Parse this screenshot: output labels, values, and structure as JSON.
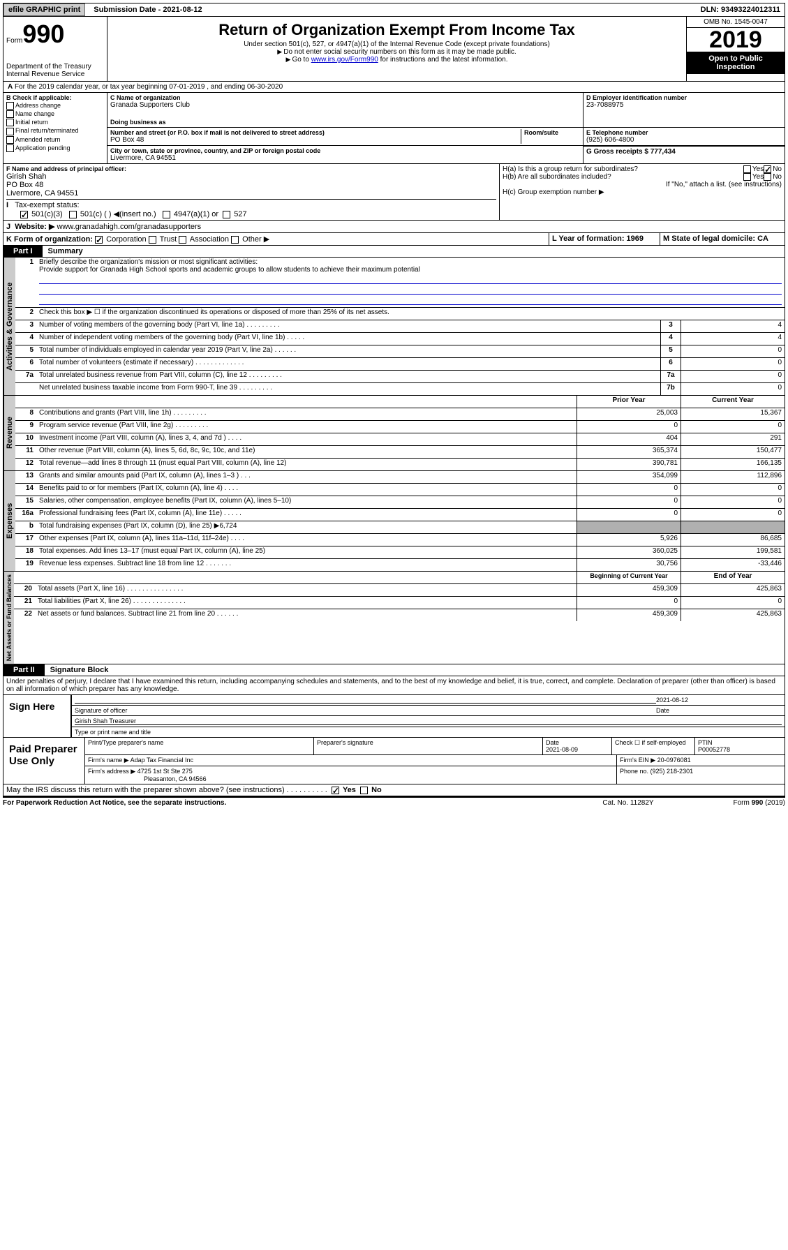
{
  "topbar": {
    "efile": "efile GRAPHIC print",
    "submission": "Submission Date - 2021-08-12",
    "dln": "DLN: 93493224012311"
  },
  "header": {
    "form_small": "Form",
    "form_big": "990",
    "dept": "Department of the Treasury\nInternal Revenue Service",
    "title": "Return of Organization Exempt From Income Tax",
    "sub1": "Under section 501(c), 527, or 4947(a)(1) of the Internal Revenue Code (except private foundations)",
    "sub2": "Do not enter social security numbers on this form as it may be made public.",
    "sub3_pre": "Go to ",
    "sub3_link": "www.irs.gov/Form990",
    "sub3_post": " for instructions and the latest information.",
    "omb": "OMB No. 1545-0047",
    "year": "2019",
    "public": "Open to Public Inspection"
  },
  "period": {
    "text": "For the 2019 calendar year, or tax year beginning 07-01-2019   , and ending 06-30-2020"
  },
  "sectB": {
    "hdr": "B Check if applicable:",
    "opts": [
      "Address change",
      "Name change",
      "Initial return",
      "Final return/terminated",
      "Amended return",
      "Application pending"
    ]
  },
  "sectC": {
    "name_lbl": "C Name of organization",
    "name": "Granada Supporters Club",
    "dba_lbl": "Doing business as",
    "dba": "",
    "addr_lbl": "Number and street (or P.O. box if mail is not delivered to street address)",
    "room_lbl": "Room/suite",
    "addr": "PO Box 48",
    "city_lbl": "City or town, state or province, country, and ZIP or foreign postal code",
    "city": "Livermore, CA  94551"
  },
  "sectD": {
    "lbl": "D Employer identification number",
    "val": "23-7088975"
  },
  "sectE": {
    "lbl": "E Telephone number",
    "val": "(925) 606-4800"
  },
  "sectG": {
    "lbl": "G Gross receipts $ 777,434"
  },
  "sectF": {
    "lbl": "F  Name and address of principal officer:",
    "name": "Girish Shah",
    "addr": "PO Box 48",
    "city": "Livermore, CA  94551"
  },
  "sectH": {
    "a": "H(a)  Is this a group return for subordinates?",
    "b": "H(b)  Are all subordinates included?",
    "bnote": "If \"No,\" attach a list. (see instructions)",
    "c": "H(c)  Group exemption number ▶"
  },
  "sectI": {
    "lbl": "Tax-exempt status:",
    "o1": "501(c)(3)",
    "o2": "501(c) (  ) ◀(insert no.)",
    "o3": "4947(a)(1) or",
    "o4": "527"
  },
  "sectJ": {
    "lbl": "Website: ▶",
    "val": "www.granadahigh.com/granadasupporters"
  },
  "sectK": {
    "lbl": "K Form of organization:",
    "o1": "Corporation",
    "o2": "Trust",
    "o3": "Association",
    "o4": "Other ▶"
  },
  "sectL": {
    "lbl": "L Year of formation: 1969"
  },
  "sectM": {
    "lbl": "M State of legal domicile: CA"
  },
  "part1": {
    "num": "Part I",
    "title": "Summary"
  },
  "summary": {
    "q1": "Briefly describe the organization's mission or most significant activities:",
    "mission": "Provide support for Granada High School sports and academic groups to allow students to achieve their maximum potential",
    "q2": "Check this box ▶ ☐  if the organization discontinued its operations or disposed of more than 25% of its net assets.",
    "rows_gov": [
      {
        "n": "3",
        "t": "Number of voting members of the governing body (Part VI, line 1a)  .   .   .   .   .   .   .   .   .",
        "c": "3",
        "v": "4"
      },
      {
        "n": "4",
        "t": "Number of independent voting members of the governing body (Part VI, line 1b)  .   .   .   .   .",
        "c": "4",
        "v": "4"
      },
      {
        "n": "5",
        "t": "Total number of individuals employed in calendar year 2019 (Part V, line 2a)  .   .   .   .   .   .",
        "c": "5",
        "v": "0"
      },
      {
        "n": "6",
        "t": "Total number of volunteers (estimate if necessary)  .   .   .   .   .   .   .   .   .   .   .   .   .",
        "c": "6",
        "v": "0"
      },
      {
        "n": "7a",
        "t": "Total unrelated business revenue from Part VIII, column (C), line 12  .   .   .   .   .   .   .   .   .",
        "c": "7a",
        "v": "0"
      },
      {
        "n": "",
        "t": "Net unrelated business taxable income from Form 990-T, line 39  .   .   .   .   .   .   .   .   .",
        "c": "7b",
        "v": "0"
      }
    ],
    "col_py": "Prior Year",
    "col_cy": "Current Year",
    "col_bcy": "Beginning of Current Year",
    "col_ey": "End of Year",
    "rows_rev": [
      {
        "n": "8",
        "t": "Contributions and grants (Part VIII, line 1h)  .   .   .   .   .   .   .   .   .",
        "py": "25,003",
        "cy": "15,367"
      },
      {
        "n": "9",
        "t": "Program service revenue (Part VIII, line 2g)  .   .   .   .   .   .   .   .   .",
        "py": "0",
        "cy": "0"
      },
      {
        "n": "10",
        "t": "Investment income (Part VIII, column (A), lines 3, 4, and 7d )  .   .   .   .",
        "py": "404",
        "cy": "291"
      },
      {
        "n": "11",
        "t": "Other revenue (Part VIII, column (A), lines 5, 6d, 8c, 9c, 10c, and 11e)",
        "py": "365,374",
        "cy": "150,477"
      },
      {
        "n": "12",
        "t": "Total revenue—add lines 8 through 11 (must equal Part VIII, column (A), line 12)",
        "py": "390,781",
        "cy": "166,135"
      }
    ],
    "rows_exp": [
      {
        "n": "13",
        "t": "Grants and similar amounts paid (Part IX, column (A), lines 1–3 )  .   .   .",
        "py": "354,099",
        "cy": "112,896"
      },
      {
        "n": "14",
        "t": "Benefits paid to or for members (Part IX, column (A), line 4)  .   .   .   .",
        "py": "0",
        "cy": "0"
      },
      {
        "n": "15",
        "t": "Salaries, other compensation, employee benefits (Part IX, column (A), lines 5–10)",
        "py": "0",
        "cy": "0"
      },
      {
        "n": "16a",
        "t": "Professional fundraising fees (Part IX, column (A), line 11e)  .   .   .   .   .",
        "py": "0",
        "cy": "0"
      },
      {
        "n": "b",
        "t": "Total fundraising expenses (Part IX, column (D), line 25) ▶6,724",
        "py": "",
        "cy": "",
        "gray": true
      },
      {
        "n": "17",
        "t": "Other expenses (Part IX, column (A), lines 11a–11d, 11f–24e)  .   .   .   .",
        "py": "5,926",
        "cy": "86,685"
      },
      {
        "n": "18",
        "t": "Total expenses. Add lines 13–17 (must equal Part IX, column (A), line 25)",
        "py": "360,025",
        "cy": "199,581"
      },
      {
        "n": "19",
        "t": "Revenue less expenses. Subtract line 18 from line 12  .   .   .   .   .   .   .",
        "py": "30,756",
        "cy": "-33,446"
      }
    ],
    "rows_na": [
      {
        "n": "20",
        "t": "Total assets (Part X, line 16)  .   .   .   .   .   .   .   .   .   .   .   .   .   .   .",
        "py": "459,309",
        "cy": "425,863"
      },
      {
        "n": "21",
        "t": "Total liabilities (Part X, line 26)  .   .   .   .   .   .   .   .   .   .   .   .   .   .",
        "py": "0",
        "cy": "0"
      },
      {
        "n": "22",
        "t": "Net assets or fund balances. Subtract line 21 from line 20  .   .   .   .   .   .",
        "py": "459,309",
        "cy": "425,863"
      }
    ],
    "vtab_gov": "Activities & Governance",
    "vtab_rev": "Revenue",
    "vtab_exp": "Expenses",
    "vtab_na": "Net Assets or Fund Balances"
  },
  "part2": {
    "num": "Part II",
    "title": "Signature Block"
  },
  "perjury": "Under penalties of perjury, I declare that I have examined this return, including accompanying schedules and statements, and to the best of my knowledge and belief, it is true, correct, and complete. Declaration of preparer (other than officer) is based on all information of which preparer has any knowledge.",
  "sign": {
    "here": "Sign Here",
    "sig_lbl": "Signature of officer",
    "date": "2021-08-12",
    "date_lbl": "Date",
    "name": "Girish Shah  Treasurer",
    "name_lbl": "Type or print name and title"
  },
  "paid": {
    "title": "Paid Preparer Use Only",
    "pn_lbl": "Print/Type preparer's name",
    "ps_lbl": "Preparer's signature",
    "d_lbl": "Date",
    "d": "2021-08-09",
    "ck_lbl": "Check ☐ if self-employed",
    "ptin_lbl": "PTIN",
    "ptin": "P00052778",
    "fn_lbl": "Firm's name   ▶",
    "fn": "Adap Tax Financial Inc",
    "fein_lbl": "Firm's EIN ▶ 20-0976081",
    "fa_lbl": "Firm's address ▶",
    "fa": "4725 1st St Ste 275",
    "fa2": "Pleasanton, CA  94566",
    "ph_lbl": "Phone no. (925) 218-2301"
  },
  "discuss": "May the IRS discuss this return with the preparer shown above? (see instructions)   .   .   .   .   .   .   .   .   .   .",
  "yn": {
    "y": "Yes",
    "n": "No"
  },
  "footer": {
    "f1": "For Paperwork Reduction Act Notice, see the separate instructions.",
    "f2": "Cat. No. 11282Y",
    "f3": "Form 990 (2019)"
  }
}
